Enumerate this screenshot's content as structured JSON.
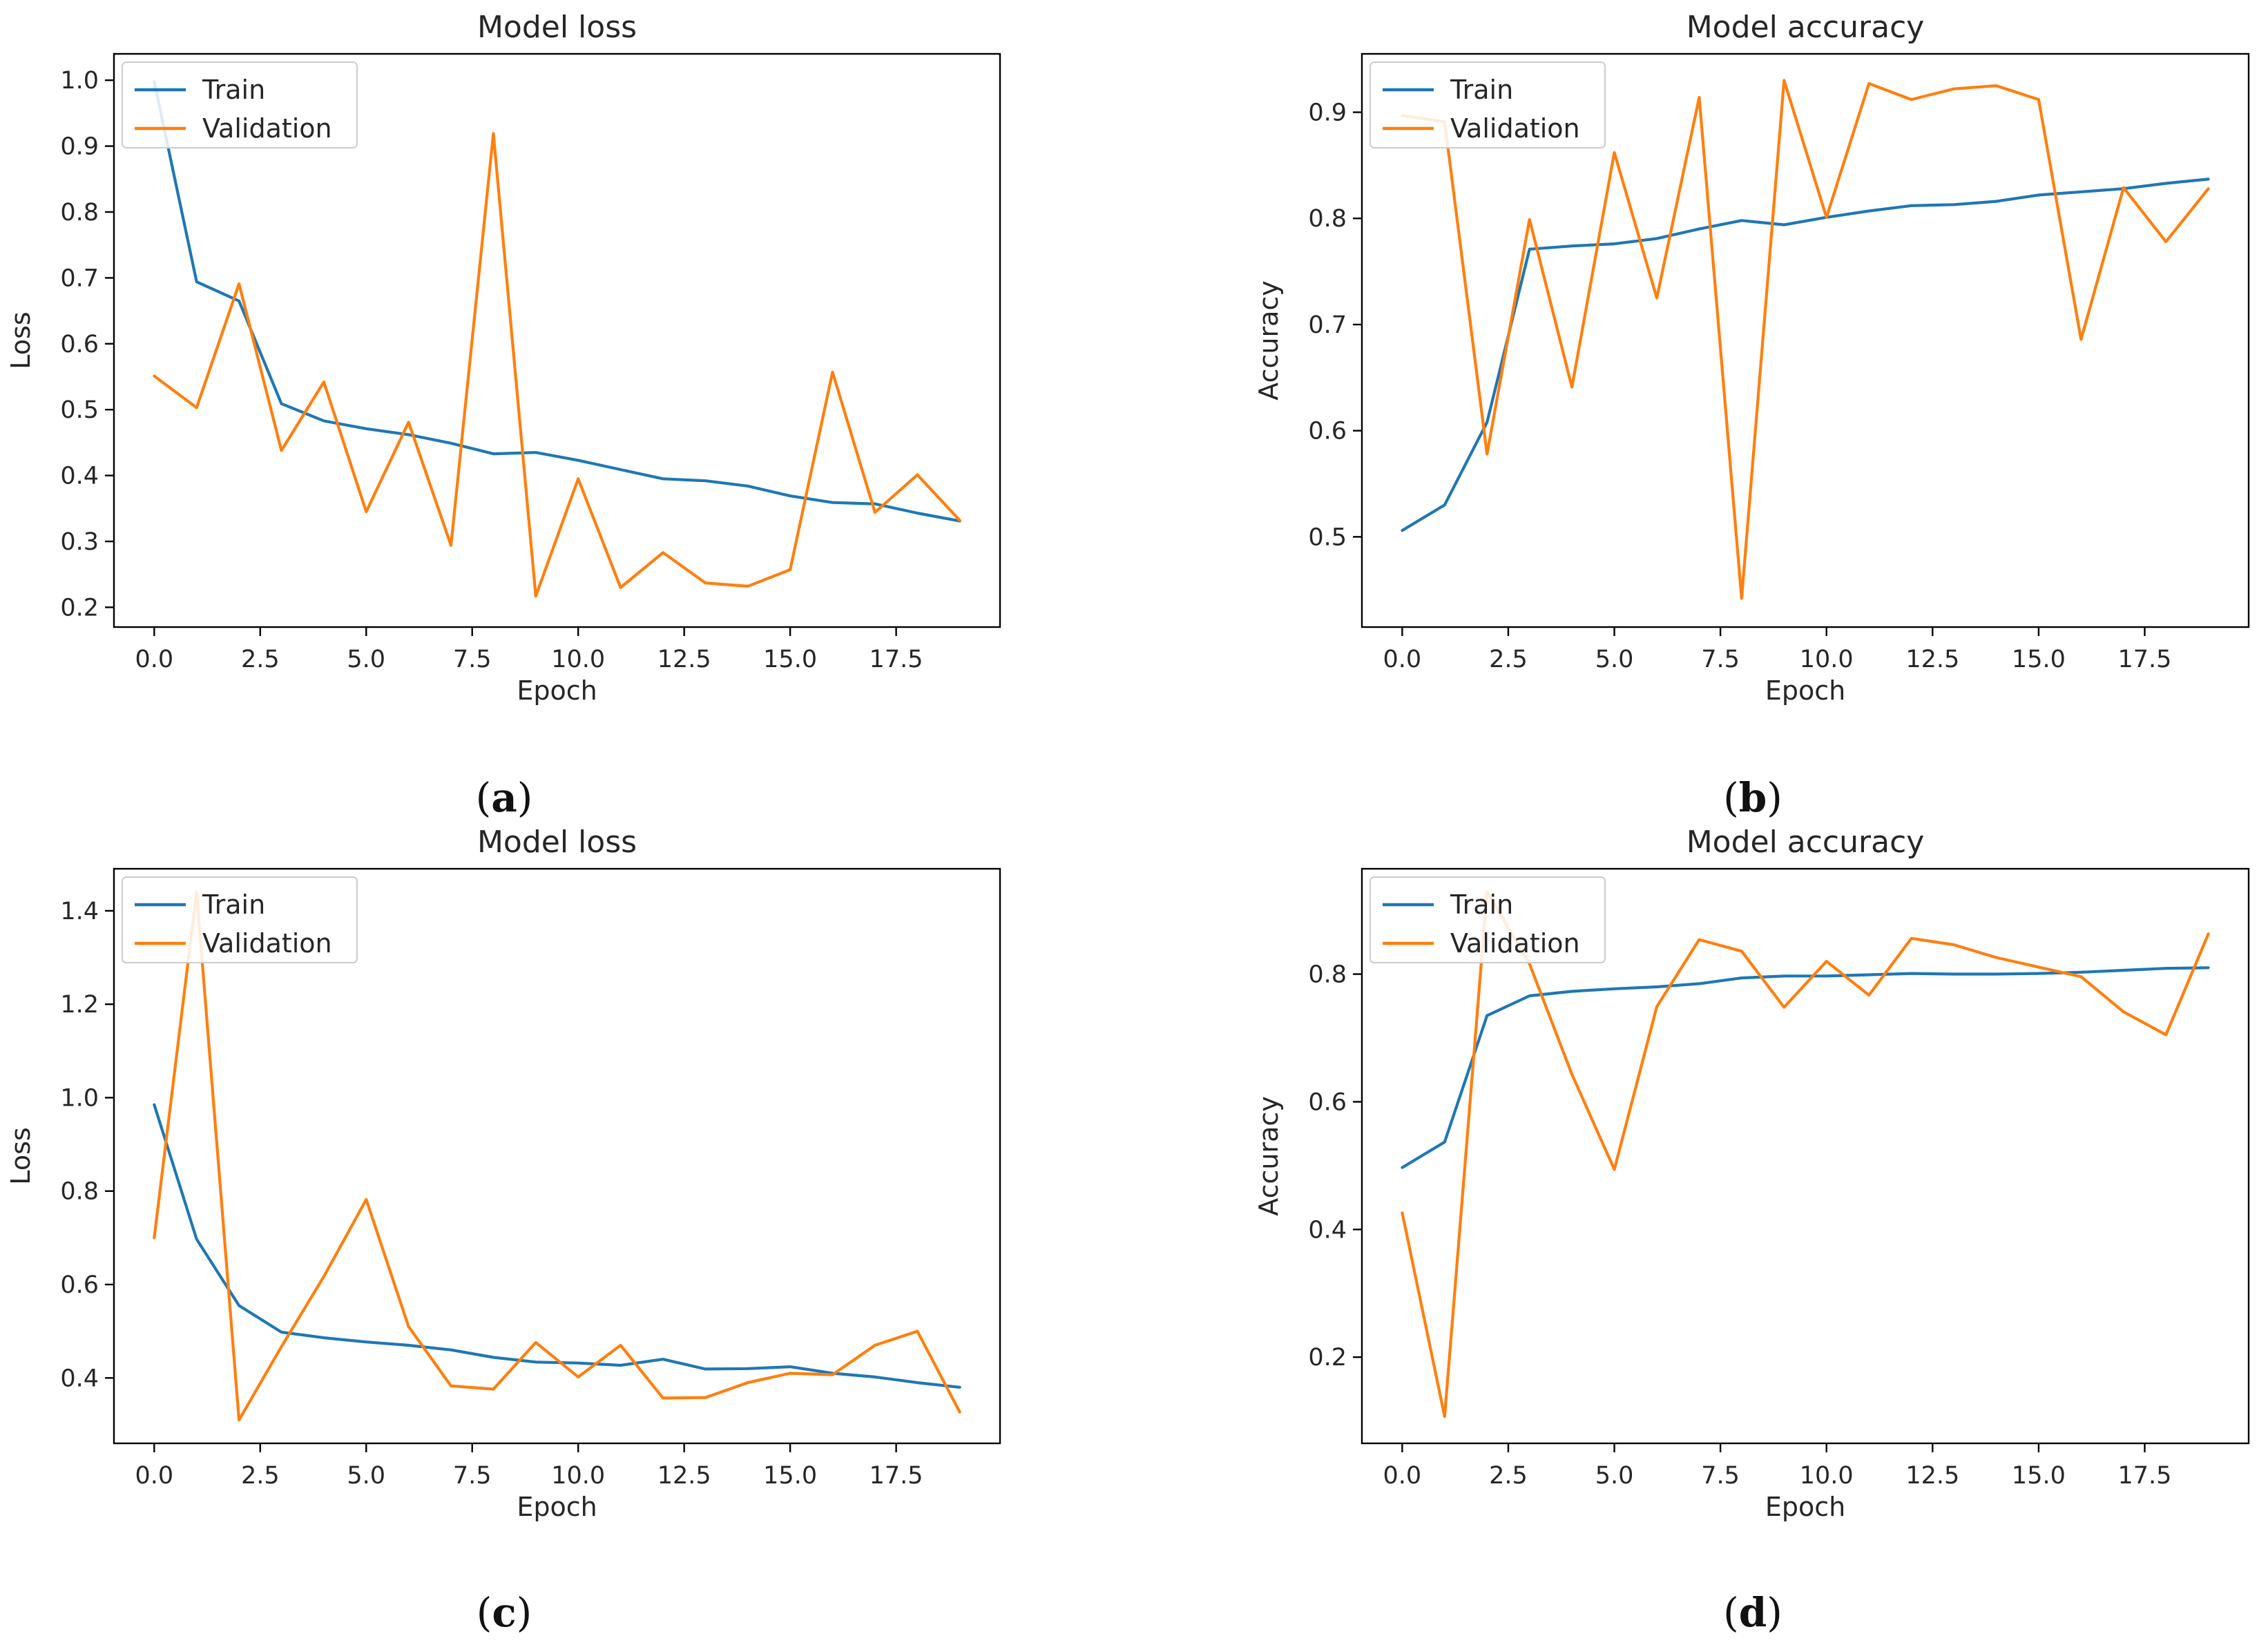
{
  "chart_data": [
    {
      "type": "line",
      "panel": "a",
      "caption": "(a)",
      "title": "Model loss",
      "xlabel": "Epoch",
      "ylabel": "Loss",
      "xlim": [
        -0.95,
        19.95
      ],
      "ylim": [
        0.17,
        1.04
      ],
      "xticks": [
        0,
        2.5,
        5,
        7.5,
        10,
        12.5,
        15,
        17.5
      ],
      "xtick_labels": [
        "0.0",
        "2.5",
        "5.0",
        "7.5",
        "10.0",
        "12.5",
        "15.0",
        "17.5"
      ],
      "yticks": [
        0.2,
        0.3,
        0.4,
        0.5,
        0.6,
        0.7,
        0.8,
        0.9,
        1.0
      ],
      "ytick_labels": [
        "0.2",
        "0.3",
        "0.4",
        "0.5",
        "0.6",
        "0.7",
        "0.8",
        "0.9",
        "1.0"
      ],
      "legend": "upper left",
      "x": [
        0,
        1,
        2,
        3,
        4,
        5,
        6,
        7,
        8,
        9,
        10,
        11,
        12,
        13,
        14,
        15,
        16,
        17,
        18,
        19
      ],
      "series": [
        {
          "name": "Train",
          "color": "#1f77b4",
          "values": [
            0.998,
            0.694,
            0.665,
            0.509,
            0.483,
            0.471,
            0.462,
            0.449,
            0.433,
            0.435,
            0.423,
            0.409,
            0.395,
            0.392,
            0.384,
            0.369,
            0.359,
            0.357,
            0.343,
            0.331
          ]
        },
        {
          "name": "Validation",
          "color": "#ff7f0e",
          "values": [
            0.551,
            0.503,
            0.691,
            0.438,
            0.542,
            0.345,
            0.481,
            0.294,
            0.919,
            0.217,
            0.395,
            0.23,
            0.283,
            0.237,
            0.232,
            0.257,
            0.557,
            0.344,
            0.401,
            0.332
          ]
        }
      ]
    },
    {
      "type": "line",
      "panel": "b",
      "caption": "(b)",
      "title": "Model accuracy",
      "xlabel": "Epoch",
      "ylabel": "Accuracy",
      "xlim": [
        -0.95,
        19.95
      ],
      "ylim": [
        0.415,
        0.955
      ],
      "xticks": [
        0,
        2.5,
        5,
        7.5,
        10,
        12.5,
        15,
        17.5
      ],
      "xtick_labels": [
        "0.0",
        "2.5",
        "5.0",
        "7.5",
        "10.0",
        "12.5",
        "15.0",
        "17.5"
      ],
      "yticks": [
        0.5,
        0.6,
        0.7,
        0.8,
        0.9
      ],
      "ytick_labels": [
        "0.5",
        "0.6",
        "0.7",
        "0.8",
        "0.9"
      ],
      "legend": "upper left",
      "x": [
        0,
        1,
        2,
        3,
        4,
        5,
        6,
        7,
        8,
        9,
        10,
        11,
        12,
        13,
        14,
        15,
        16,
        17,
        18,
        19
      ],
      "series": [
        {
          "name": "Train",
          "color": "#1f77b4",
          "values": [
            0.506,
            0.53,
            0.608,
            0.771,
            0.774,
            0.776,
            0.781,
            0.79,
            0.798,
            0.794,
            0.801,
            0.807,
            0.812,
            0.813,
            0.816,
            0.822,
            0.825,
            0.828,
            0.833,
            0.837
          ]
        },
        {
          "name": "Validation",
          "color": "#ff7f0e",
          "values": [
            0.897,
            0.891,
            0.578,
            0.799,
            0.641,
            0.862,
            0.725,
            0.914,
            0.442,
            0.93,
            0.801,
            0.927,
            0.912,
            0.922,
            0.925,
            0.912,
            0.686,
            0.829,
            0.778,
            0.828
          ]
        }
      ]
    },
    {
      "type": "line",
      "panel": "c",
      "caption": "(c)",
      "title": "Model loss",
      "xlabel": "Epoch",
      "ylabel": "Loss",
      "xlim": [
        -0.95,
        19.95
      ],
      "ylim": [
        0.26,
        1.49
      ],
      "xticks": [
        0,
        2.5,
        5,
        7.5,
        10,
        12.5,
        15,
        17.5
      ],
      "xtick_labels": [
        "0.0",
        "2.5",
        "5.0",
        "7.5",
        "10.0",
        "12.5",
        "15.0",
        "17.5"
      ],
      "yticks": [
        0.4,
        0.6,
        0.8,
        1.0,
        1.2,
        1.4
      ],
      "ytick_labels": [
        "0.4",
        "0.6",
        "0.8",
        "1.0",
        "1.2",
        "1.4"
      ],
      "legend": "upper left",
      "x": [
        0,
        1,
        2,
        3,
        4,
        5,
        6,
        7,
        8,
        9,
        10,
        11,
        12,
        13,
        14,
        15,
        16,
        17,
        18,
        19
      ],
      "series": [
        {
          "name": "Train",
          "color": "#1f77b4",
          "values": [
            0.985,
            0.697,
            0.555,
            0.498,
            0.486,
            0.477,
            0.47,
            0.46,
            0.444,
            0.434,
            0.432,
            0.427,
            0.44,
            0.419,
            0.42,
            0.424,
            0.41,
            0.402,
            0.39,
            0.38
          ]
        },
        {
          "name": "Validation",
          "color": "#ff7f0e",
          "values": [
            0.7,
            1.44,
            0.31,
            0.467,
            0.617,
            0.782,
            0.51,
            0.383,
            0.376,
            0.476,
            0.402,
            0.47,
            0.357,
            0.358,
            0.39,
            0.41,
            0.407,
            0.47,
            0.5,
            0.327
          ]
        }
      ]
    },
    {
      "type": "line",
      "panel": "d",
      "caption": "(d)",
      "title": "Model accuracy",
      "xlabel": "Epoch",
      "ylabel": "Accuracy",
      "xlim": [
        -0.95,
        19.95
      ],
      "ylim": [
        0.065,
        0.965
      ],
      "xticks": [
        0,
        2.5,
        5,
        7.5,
        10,
        12.5,
        15,
        17.5
      ],
      "xtick_labels": [
        "0.0",
        "2.5",
        "5.0",
        "7.5",
        "10.0",
        "12.5",
        "15.0",
        "17.5"
      ],
      "yticks": [
        0.2,
        0.4,
        0.6,
        0.8
      ],
      "ytick_labels": [
        "0.2",
        "0.4",
        "0.6",
        "0.8"
      ],
      "legend": "upper left",
      "x": [
        0,
        1,
        2,
        3,
        4,
        5,
        6,
        7,
        8,
        9,
        10,
        11,
        12,
        13,
        14,
        15,
        16,
        17,
        18,
        19
      ],
      "series": [
        {
          "name": "Train",
          "color": "#1f77b4",
          "values": [
            0.497,
            0.537,
            0.735,
            0.766,
            0.773,
            0.777,
            0.78,
            0.785,
            0.794,
            0.797,
            0.797,
            0.799,
            0.801,
            0.8,
            0.8,
            0.801,
            0.803,
            0.806,
            0.809,
            0.81
          ]
        },
        {
          "name": "Validation",
          "color": "#ff7f0e",
          "values": [
            0.426,
            0.107,
            0.929,
            0.816,
            0.643,
            0.494,
            0.749,
            0.854,
            0.836,
            0.748,
            0.82,
            0.767,
            0.856,
            0.846,
            0.826,
            0.811,
            0.796,
            0.741,
            0.705,
            0.863
          ]
        }
      ]
    }
  ]
}
